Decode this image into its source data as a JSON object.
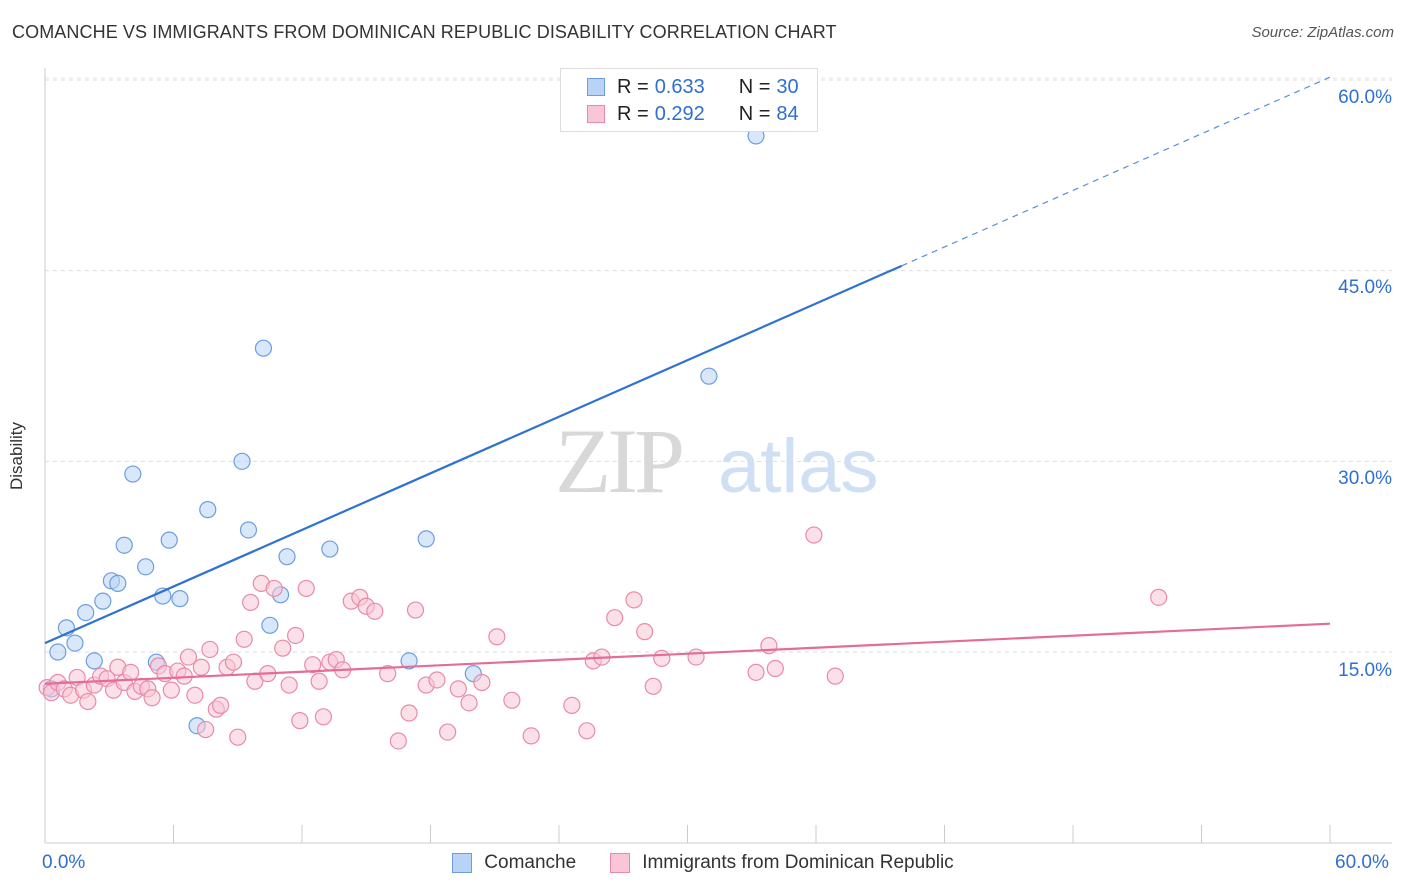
{
  "title": "COMANCHE VS IMMIGRANTS FROM DOMINICAN REPUBLIC DISABILITY CORRELATION CHART",
  "source": "Source: ZipAtlas.com",
  "legend": {
    "r_label": "R =",
    "n_label": "N =",
    "rows": [
      {
        "r": "0.633",
        "n": "30",
        "fill": "#b8d3f5",
        "stroke": "#6d9de0"
      },
      {
        "r": "0.292",
        "n": "84",
        "fill": "#f8c6d6",
        "stroke": "#e98aaa"
      }
    ]
  },
  "bottom_legend": [
    {
      "label": "Comanche",
      "fill": "#b8d3f5",
      "stroke": "#6d9de0"
    },
    {
      "label": "Immigrants from Dominican Republic",
      "fill": "#f8c6d6",
      "stroke": "#e98aaa"
    }
  ],
  "watermark": {
    "zip": "ZIP",
    "atlas": "atlas"
  },
  "chart_data": {
    "type": "scatter",
    "title": "COMANCHE VS IMMIGRANTS FROM DOMINICAN REPUBLIC DISABILITY CORRELATION CHART",
    "xlabel": "",
    "ylabel": "Disability",
    "x_tick_labels": [
      "0.0%",
      "60.0%"
    ],
    "y_tick_labels": [
      "15.0%",
      "30.0%",
      "45.0%",
      "60.0%"
    ],
    "y_ticks": [
      15,
      30,
      45,
      60
    ],
    "xlim": [
      0,
      60
    ],
    "ylim": [
      0,
      62
    ],
    "grid": true,
    "legend_position": "top-center",
    "series": [
      {
        "name": "Comanche",
        "color": "#6d9de0",
        "fill": "#b8d3f5",
        "line_color": "#2f72d0",
        "trend": {
          "slope": 0.742,
          "intercept": 15.7,
          "solid_to_x": 40
        },
        "points": [
          [
            0.3,
            12.1
          ],
          [
            0.6,
            15.0
          ],
          [
            1.0,
            16.9
          ],
          [
            1.4,
            15.7
          ],
          [
            1.9,
            18.1
          ],
          [
            2.3,
            14.3
          ],
          [
            2.7,
            19.0
          ],
          [
            3.1,
            20.6
          ],
          [
            3.4,
            20.4
          ],
          [
            3.7,
            23.4
          ],
          [
            4.1,
            29.0
          ],
          [
            4.7,
            21.7
          ],
          [
            5.2,
            14.2
          ],
          [
            5.5,
            19.4
          ],
          [
            5.8,
            23.8
          ],
          [
            6.3,
            19.2
          ],
          [
            7.1,
            9.2
          ],
          [
            7.6,
            26.2
          ],
          [
            9.2,
            30.0
          ],
          [
            9.5,
            24.6
          ],
          [
            10.2,
            38.9
          ],
          [
            10.5,
            17.1
          ],
          [
            11.0,
            19.5
          ],
          [
            11.3,
            22.5
          ],
          [
            13.3,
            23.1
          ],
          [
            17.0,
            14.3
          ],
          [
            17.8,
            23.9
          ],
          [
            20.0,
            13.3
          ],
          [
            31.0,
            36.7
          ],
          [
            33.2,
            55.6
          ]
        ]
      },
      {
        "name": "Immigrants from Dominican Republic",
        "color": "#e98aaa",
        "fill": "#f8c6d6",
        "line_color": "#e46d97",
        "trend": {
          "slope": 0.0788,
          "intercept": 12.5,
          "solid_to_x": 60
        },
        "points": [
          [
            0.1,
            12.2
          ],
          [
            0.3,
            11.8
          ],
          [
            0.6,
            12.6
          ],
          [
            0.9,
            12.1
          ],
          [
            1.2,
            11.6
          ],
          [
            1.5,
            13.0
          ],
          [
            1.8,
            12.0
          ],
          [
            2.0,
            11.1
          ],
          [
            2.3,
            12.4
          ],
          [
            2.6,
            13.1
          ],
          [
            2.9,
            12.9
          ],
          [
            3.2,
            12.0
          ],
          [
            3.4,
            13.8
          ],
          [
            3.7,
            12.6
          ],
          [
            4.0,
            13.4
          ],
          [
            4.2,
            11.9
          ],
          [
            4.5,
            12.3
          ],
          [
            4.8,
            12.1
          ],
          [
            5.0,
            11.4
          ],
          [
            5.3,
            13.9
          ],
          [
            5.6,
            13.3
          ],
          [
            5.9,
            12.0
          ],
          [
            6.2,
            13.5
          ],
          [
            6.5,
            13.1
          ],
          [
            6.7,
            14.6
          ],
          [
            7.0,
            11.6
          ],
          [
            7.3,
            13.8
          ],
          [
            7.5,
            8.9
          ],
          [
            7.7,
            15.2
          ],
          [
            8.0,
            10.5
          ],
          [
            8.2,
            10.8
          ],
          [
            8.5,
            13.8
          ],
          [
            8.8,
            14.2
          ],
          [
            9.0,
            8.3
          ],
          [
            9.3,
            16.0
          ],
          [
            9.6,
            18.9
          ],
          [
            9.8,
            12.7
          ],
          [
            10.1,
            20.4
          ],
          [
            10.4,
            13.3
          ],
          [
            10.7,
            20.0
          ],
          [
            11.1,
            15.3
          ],
          [
            11.4,
            12.4
          ],
          [
            11.7,
            16.3
          ],
          [
            11.9,
            9.6
          ],
          [
            12.2,
            20.0
          ],
          [
            12.5,
            14.0
          ],
          [
            12.8,
            12.7
          ],
          [
            13.0,
            9.9
          ],
          [
            13.3,
            14.2
          ],
          [
            13.6,
            14.4
          ],
          [
            13.9,
            13.6
          ],
          [
            14.3,
            19.0
          ],
          [
            14.7,
            19.3
          ],
          [
            15.0,
            18.6
          ],
          [
            15.4,
            18.2
          ],
          [
            16.0,
            13.3
          ],
          [
            16.5,
            8.0
          ],
          [
            17.0,
            10.2
          ],
          [
            17.3,
            18.3
          ],
          [
            17.8,
            12.4
          ],
          [
            18.3,
            12.8
          ],
          [
            18.8,
            8.7
          ],
          [
            19.3,
            12.1
          ],
          [
            19.8,
            11.0
          ],
          [
            20.4,
            12.6
          ],
          [
            21.1,
            16.2
          ],
          [
            21.8,
            11.2
          ],
          [
            22.7,
            8.4
          ],
          [
            24.6,
            10.8
          ],
          [
            25.3,
            8.8
          ],
          [
            25.6,
            14.3
          ],
          [
            26.0,
            14.6
          ],
          [
            26.6,
            17.7
          ],
          [
            27.5,
            19.1
          ],
          [
            28.0,
            16.6
          ],
          [
            28.4,
            12.3
          ],
          [
            28.8,
            14.5
          ],
          [
            30.4,
            14.6
          ],
          [
            33.2,
            13.4
          ],
          [
            33.8,
            15.5
          ],
          [
            34.1,
            13.7
          ],
          [
            35.9,
            24.2
          ],
          [
            36.9,
            13.1
          ],
          [
            52.0,
            19.3
          ]
        ]
      }
    ]
  }
}
